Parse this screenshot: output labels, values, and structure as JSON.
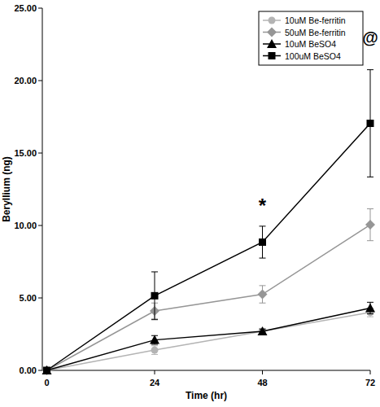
{
  "chart_data": {
    "type": "line",
    "x_label": "Time (hr)",
    "y_label": "Beryllium (ng)",
    "x": [
      0,
      24,
      48,
      72
    ],
    "xlim": [
      -1,
      72
    ],
    "xticks": [
      0,
      24,
      48,
      72
    ],
    "ylim": [
      0,
      25
    ],
    "yticks": [
      {
        "value": 0,
        "label": "0.00"
      },
      {
        "value": 5,
        "label": "5.00"
      },
      {
        "value": 10,
        "label": "10.00"
      },
      {
        "value": 15,
        "label": "15.00"
      },
      {
        "value": 20,
        "label": "20.00"
      },
      {
        "value": 25,
        "label": "25.00"
      }
    ],
    "grid": false,
    "legend": "top-right",
    "series": [
      {
        "name": "10uM Be-ferritin",
        "color": "#b4b4b4",
        "marker": "circle",
        "values": [
          0,
          1.4,
          2.7,
          4.0
        ],
        "errors": [
          0,
          0.3,
          0.2,
          0.3
        ]
      },
      {
        "name": "50uM Be-ferritin",
        "color": "#969696",
        "marker": "diamond",
        "values": [
          0,
          4.1,
          5.25,
          10.05
        ],
        "errors": [
          0,
          0.55,
          0.6,
          1.1
        ]
      },
      {
        "name": "10uM BeSO4",
        "color": "#000000",
        "marker": "triangle",
        "values": [
          0,
          2.1,
          2.7,
          4.3
        ],
        "errors": [
          0,
          0.3,
          0.15,
          0.4
        ]
      },
      {
        "name": "100uM BeSO4",
        "color": "#000000",
        "marker": "square",
        "values": [
          0,
          5.15,
          8.85,
          17.05
        ],
        "errors": [
          0,
          1.65,
          1.1,
          3.7
        ]
      }
    ],
    "annotations": [
      {
        "text": "*",
        "x": 48,
        "y": 10.9
      },
      {
        "text": "@",
        "x": 72,
        "y": 22.6
      }
    ]
  }
}
